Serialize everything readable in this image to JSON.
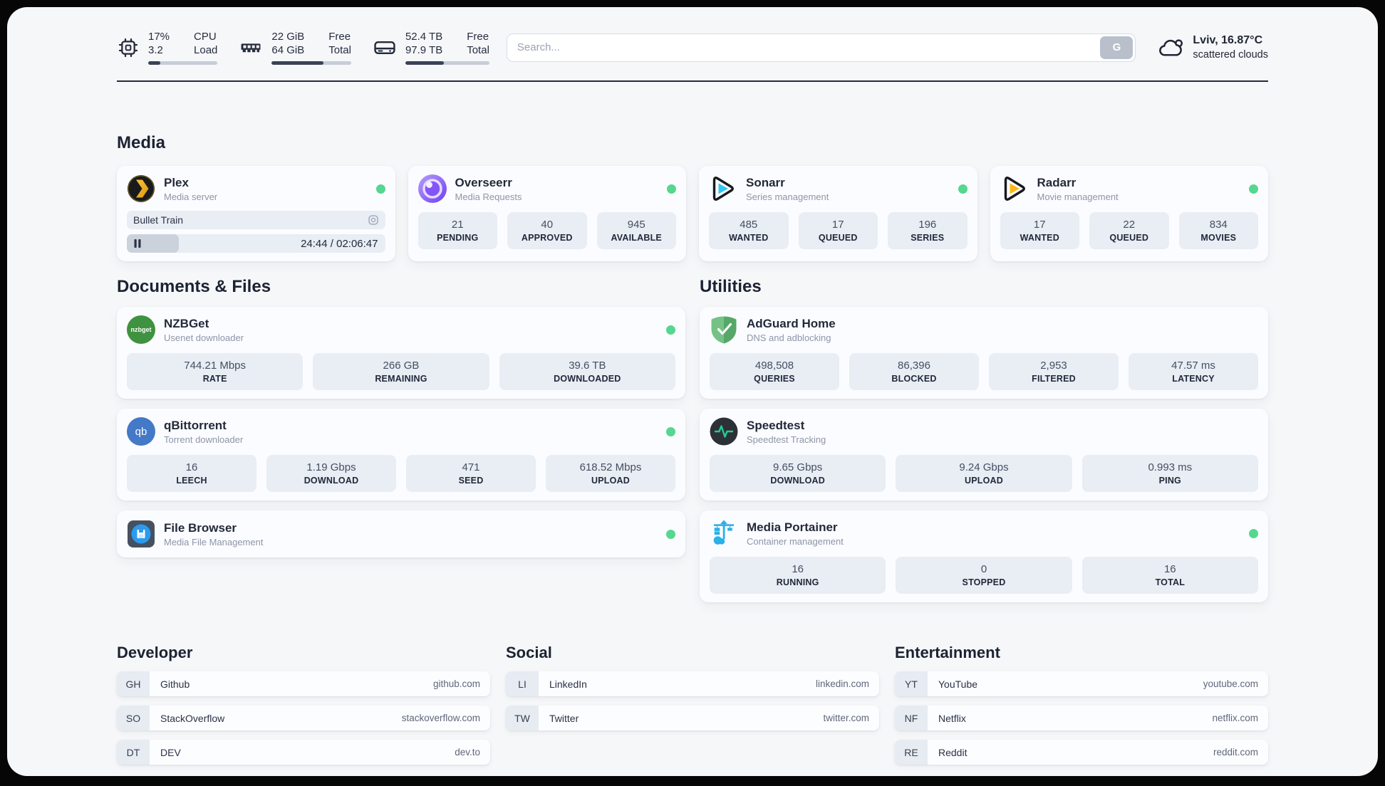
{
  "theme": {
    "status_online_color": "#55d78f"
  },
  "topbar": {
    "cpu": {
      "values": [
        "17%",
        "3.2"
      ],
      "labels": [
        "CPU",
        "Load"
      ],
      "progress_pct": 17
    },
    "memory": {
      "values": [
        "22 GiB",
        "64 GiB"
      ],
      "labels": [
        "Free",
        "Total"
      ],
      "progress_pct": 65
    },
    "storage": {
      "values": [
        "52.4 TB",
        "97.9 TB"
      ],
      "labels": [
        "Free",
        "Total"
      ],
      "progress_pct": 46
    },
    "search_placeholder": "Search...",
    "search_button": "G",
    "weather": {
      "headline": "Lviv, 16.87°C",
      "condition": "scattered clouds"
    }
  },
  "media": {
    "title": "Media",
    "plex": {
      "title": "Plex",
      "subtitle": "Media server",
      "now_playing": "Bullet Train",
      "time": "24:44 / 02:06:47",
      "progress_pct": 20
    },
    "overseerr": {
      "title": "Overseerr",
      "subtitle": "Media Requests",
      "stats": [
        {
          "value": "21",
          "label": "PENDING"
        },
        {
          "value": "40",
          "label": "APPROVED"
        },
        {
          "value": "945",
          "label": "AVAILABLE"
        }
      ]
    },
    "sonarr": {
      "title": "Sonarr",
      "subtitle": "Series management",
      "stats": [
        {
          "value": "485",
          "label": "WANTED"
        },
        {
          "value": "17",
          "label": "QUEUED"
        },
        {
          "value": "196",
          "label": "SERIES"
        }
      ]
    },
    "radarr": {
      "title": "Radarr",
      "subtitle": "Movie management",
      "stats": [
        {
          "value": "17",
          "label": "WANTED"
        },
        {
          "value": "22",
          "label": "QUEUED"
        },
        {
          "value": "834",
          "label": "MOVIES"
        }
      ]
    }
  },
  "documents": {
    "title": "Documents & Files",
    "nzbget": {
      "title": "NZBGet",
      "subtitle": "Usenet downloader",
      "stats": [
        {
          "value": "744.21 Mbps",
          "label": "RATE"
        },
        {
          "value": "266 GB",
          "label": "REMAINING"
        },
        {
          "value": "39.6 TB",
          "label": "DOWNLOADED"
        }
      ]
    },
    "qbittorrent": {
      "title": "qBittorrent",
      "subtitle": "Torrent downloader",
      "stats": [
        {
          "value": "16",
          "label": "LEECH"
        },
        {
          "value": "1.19 Gbps",
          "label": "DOWNLOAD"
        },
        {
          "value": "471",
          "label": "SEED"
        },
        {
          "value": "618.52 Mbps",
          "label": "UPLOAD"
        }
      ]
    },
    "filebrowser": {
      "title": "File Browser",
      "subtitle": "Media File Management"
    }
  },
  "utilities": {
    "title": "Utilities",
    "adguard": {
      "title": "AdGuard Home",
      "subtitle": "DNS and adblocking",
      "stats": [
        {
          "value": "498,508",
          "label": "QUERIES"
        },
        {
          "value": "86,396",
          "label": "BLOCKED"
        },
        {
          "value": "2,953",
          "label": "FILTERED"
        },
        {
          "value": "47.57 ms",
          "label": "LATENCY"
        }
      ]
    },
    "speedtest": {
      "title": "Speedtest",
      "subtitle": "Speedtest Tracking",
      "stats": [
        {
          "value": "9.65 Gbps",
          "label": "DOWNLOAD"
        },
        {
          "value": "9.24 Gbps",
          "label": "UPLOAD"
        },
        {
          "value": "0.993 ms",
          "label": "PING"
        }
      ]
    },
    "portainer": {
      "title": "Media Portainer",
      "subtitle": "Container management",
      "stats": [
        {
          "value": "16",
          "label": "RUNNING"
        },
        {
          "value": "0",
          "label": "STOPPED"
        },
        {
          "value": "16",
          "label": "TOTAL"
        }
      ]
    }
  },
  "bookmarks": [
    {
      "title": "Developer",
      "items": [
        {
          "abbr": "GH",
          "name": "Github",
          "url": "github.com"
        },
        {
          "abbr": "SO",
          "name": "StackOverflow",
          "url": "stackoverflow.com"
        },
        {
          "abbr": "DT",
          "name": "DEV",
          "url": "dev.to"
        }
      ]
    },
    {
      "title": "Social",
      "items": [
        {
          "abbr": "LI",
          "name": "LinkedIn",
          "url": "linkedin.com"
        },
        {
          "abbr": "TW",
          "name": "Twitter",
          "url": "twitter.com"
        }
      ]
    },
    {
      "title": "Entertainment",
      "items": [
        {
          "abbr": "YT",
          "name": "YouTube",
          "url": "youtube.com"
        },
        {
          "abbr": "NF",
          "name": "Netflix",
          "url": "netflix.com"
        },
        {
          "abbr": "RE",
          "name": "Reddit",
          "url": "reddit.com"
        }
      ]
    }
  ]
}
